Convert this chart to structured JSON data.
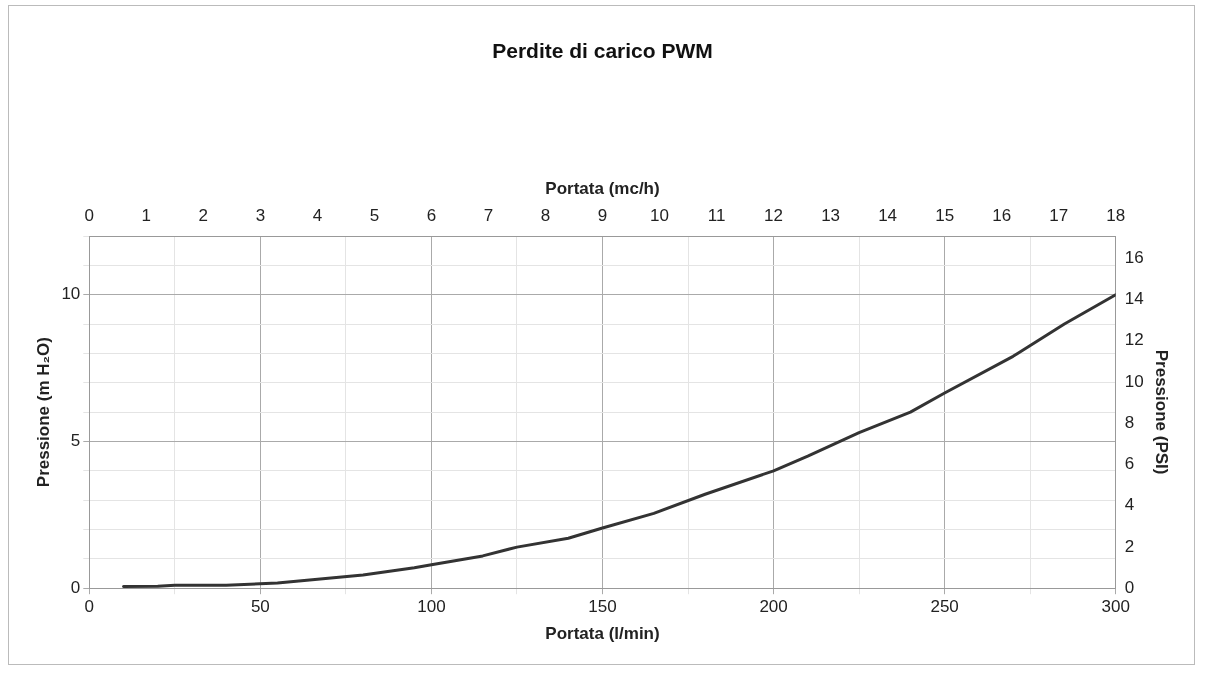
{
  "chart_data": {
    "type": "line",
    "title": "Perdite di carico PWM",
    "xlabel": "Portata (l/min)",
    "ylabel": "Pressione (m H₂O)",
    "y2label": "Pressione (PSI)",
    "x2label": "Portata (mc/h)",
    "x": [
      10,
      20,
      25,
      40,
      55,
      80,
      95,
      100,
      115,
      125,
      140,
      150,
      165,
      180,
      200,
      210,
      225,
      240,
      250,
      270,
      285,
      300
    ],
    "series": [
      {
        "color": "#333333",
        "values": [
          0.06,
          0.07,
          0.1,
          0.1,
          0.18,
          0.45,
          0.7,
          0.8,
          1.1,
          1.4,
          1.7,
          2.05,
          2.55,
          3.2,
          4.0,
          4.5,
          5.3,
          6.0,
          6.65,
          7.9,
          9.0,
          10.0
        ]
      }
    ],
    "xlim": [
      0,
      300
    ],
    "xticks": [
      0,
      {
        "value": 25,
        "label": null
      },
      50,
      {
        "value": 75,
        "label": null
      },
      100,
      {
        "value": 125,
        "label": null
      },
      150,
      {
        "value": 175,
        "label": null
      },
      200,
      {
        "value": 225,
        "label": null
      },
      250,
      {
        "value": 275,
        "label": null
      },
      300
    ],
    "x2lim": [
      0,
      18
    ],
    "x2ticks": [
      0,
      1,
      2,
      3,
      4,
      5,
      6,
      7,
      8,
      9,
      10,
      11,
      12,
      13,
      14,
      15,
      16,
      17,
      18
    ],
    "ylim": [
      0,
      12
    ],
    "yticks": [
      0,
      {
        "value": 1,
        "label": null
      },
      {
        "value": 2,
        "label": null
      },
      {
        "value": 3,
        "label": null
      },
      {
        "value": 4,
        "label": null
      },
      5,
      {
        "value": 6,
        "label": null
      },
      {
        "value": 7,
        "label": null
      },
      {
        "value": 8,
        "label": null
      },
      {
        "value": 9,
        "label": null
      },
      10,
      {
        "value": 11,
        "label": null
      },
      {
        "value": 12,
        "label": null
      }
    ],
    "y2lim": [
      0,
      17.07
    ],
    "y2ticks": [
      0,
      2,
      4,
      6,
      8,
      10,
      12,
      14,
      16
    ],
    "grid": true,
    "marker": "none",
    "line_style": "solid",
    "legend": false
  }
}
